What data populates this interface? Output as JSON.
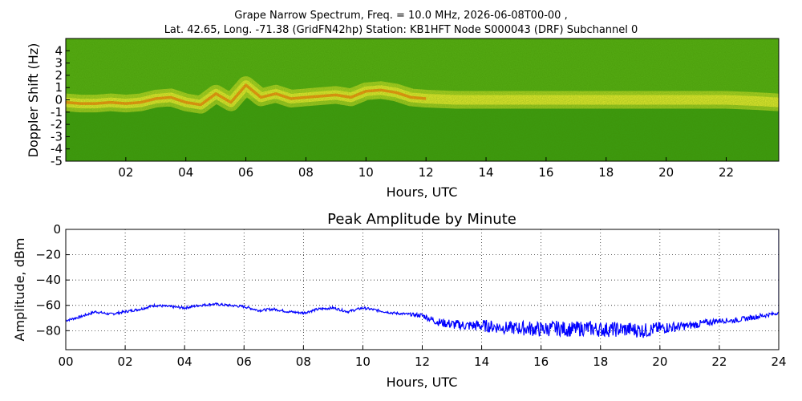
{
  "figure": {
    "title_line1": "Grape Narrow Spectrum, Freq. = 10.0 MHz, 2026-06-08T00-00 ,",
    "title_line2": "Lat.  42.65, Long. -71.38 (GridFN42hp) Station: KB1HFT Node S000043 (DRF) Subchannel 0"
  },
  "chart_data": [
    {
      "type": "heatmap",
      "title": "",
      "xlabel": "Hours, UTC",
      "ylabel": "Doppler Shift (Hz)",
      "xlim": [
        0,
        23.75
      ],
      "ylim": [
        -5,
        5
      ],
      "x_ticks": [
        2,
        4,
        6,
        8,
        10,
        12,
        14,
        16,
        18,
        20,
        22
      ],
      "x_tick_labels": [
        "02",
        "04",
        "06",
        "08",
        "10",
        "12",
        "14",
        "16",
        "18",
        "20",
        "22"
      ],
      "y_ticks": [
        -5,
        -4,
        -3,
        -2,
        -1,
        0,
        1,
        2,
        3,
        4
      ],
      "y_tick_labels": [
        "-5",
        "-4",
        "-3",
        "-2",
        "-1",
        "0",
        "1",
        "2",
        "3",
        "4"
      ],
      "colors": {
        "background": "#3d9a10",
        "mid": "#8cc91c",
        "high": "#e8e830",
        "peak": "#f08a10"
      },
      "doppler_trace": {
        "x": [
          0,
          0.5,
          1,
          1.5,
          2,
          2.5,
          3,
          3.5,
          4,
          4.5,
          5,
          5.5,
          6,
          6.5,
          7,
          7.5,
          8,
          8.5,
          9,
          9.5,
          10,
          10.5,
          11,
          11.5,
          12,
          13,
          14,
          15,
          16,
          17,
          18,
          19,
          20,
          21,
          22,
          23,
          23.75
        ],
        "y": [
          -0.2,
          -0.3,
          -0.3,
          -0.2,
          -0.3,
          -0.2,
          0.1,
          0.2,
          -0.2,
          -0.4,
          0.5,
          -0.2,
          1.2,
          0.2,
          0.5,
          0.1,
          0.2,
          0.3,
          0.4,
          0.2,
          0.7,
          0.8,
          0.6,
          0.2,
          0.1,
          0,
          0,
          0,
          0,
          0,
          0,
          0,
          0,
          0,
          0,
          -0.1,
          -0.2
        ]
      }
    },
    {
      "type": "line",
      "title": "Peak Amplitude by Minute",
      "xlabel": "Hours, UTC",
      "ylabel": "Amplitude, dBm",
      "xlim": [
        0,
        24
      ],
      "ylim": [
        -95,
        0
      ],
      "grid": true,
      "x_ticks": [
        0,
        2,
        4,
        6,
        8,
        10,
        12,
        14,
        16,
        18,
        20,
        22,
        24
      ],
      "x_tick_labels": [
        "00",
        "02",
        "04",
        "06",
        "08",
        "10",
        "12",
        "14",
        "16",
        "18",
        "20",
        "22",
        "24"
      ],
      "y_ticks": [
        -80,
        -60,
        -40,
        -20,
        0
      ],
      "y_tick_labels": [
        "−80",
        "−60",
        "−40",
        "−20",
        "0"
      ],
      "line_color": "#0000ff",
      "series": [
        {
          "x": [
            0,
            0.5,
            1,
            1.5,
            2,
            2.5,
            3,
            3.5,
            4,
            4.5,
            5,
            5.5,
            6,
            6.5,
            7,
            7.5,
            8,
            8.5,
            9,
            9.5,
            10,
            10.5,
            11,
            11.5,
            12,
            12.5,
            13,
            13.5,
            14,
            14.5,
            15,
            15.5,
            16,
            16.5,
            17,
            17.5,
            18,
            18.5,
            19,
            19.5,
            20,
            20.5,
            21,
            21.5,
            22,
            22.5,
            23,
            23.5,
            24
          ],
          "values": [
            -72,
            -69,
            -65,
            -67,
            -65,
            -63,
            -60,
            -61,
            -62,
            -60,
            -59,
            -60,
            -61,
            -64,
            -63,
            -65,
            -66,
            -63,
            -62,
            -65,
            -62,
            -64,
            -66,
            -67,
            -68,
            -73,
            -75,
            -76,
            -76,
            -77,
            -78,
            -78,
            -79,
            -78,
            -79,
            -78,
            -79,
            -79,
            -79,
            -80,
            -78,
            -77,
            -76,
            -74,
            -72,
            -72,
            -70,
            -68,
            -66
          ],
          "spread": [
            1,
            1,
            1,
            1,
            1,
            1,
            1,
            1,
            1,
            1,
            1,
            1,
            1,
            1,
            1,
            1,
            1,
            1,
            1,
            1,
            1,
            1,
            1,
            1,
            2,
            3,
            4,
            4,
            5,
            5,
            5,
            6,
            6,
            6,
            6,
            6,
            6,
            6,
            6,
            6,
            5,
            4,
            3,
            3,
            2,
            2,
            2,
            2,
            1
          ]
        }
      ]
    }
  ]
}
